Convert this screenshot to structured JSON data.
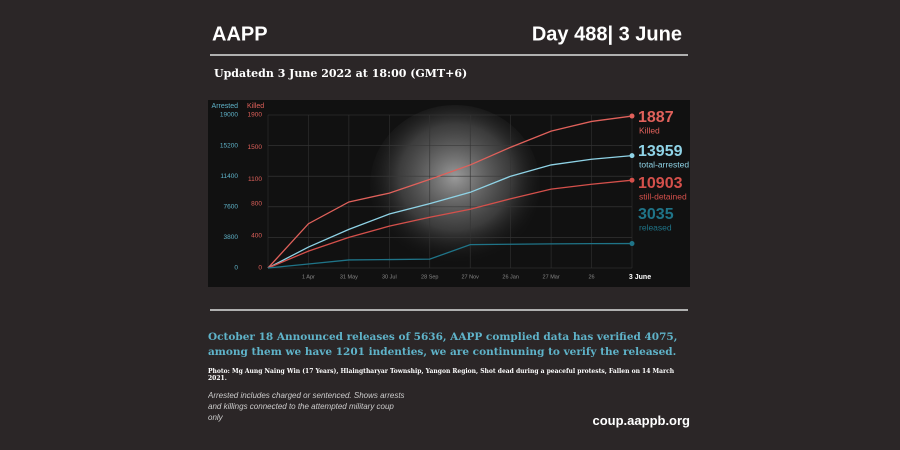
{
  "header": {
    "title": "AAPP",
    "day": "Day 488| 3 June",
    "updated": "Updatedn 3 June 2022 at 18:00 (GMT+6)"
  },
  "chart_data": {
    "type": "line",
    "y_label": "Arrested",
    "y2_label": "Killed",
    "categories": [
      null,
      "1 Apr",
      "31 May",
      "30 Jul",
      "28 Sep",
      "27 Nov",
      "26 Jan",
      "27 Mar",
      "26",
      "3 June"
    ],
    "ylim": [
      0,
      19000
    ],
    "yticks": [
      0,
      3800,
      7600,
      11400,
      15200,
      19000
    ],
    "y2lim": [
      0,
      1900
    ],
    "y2ticks": [
      0,
      400,
      800,
      1100,
      1500,
      1900
    ],
    "grid": true,
    "series": [
      {
        "name": "Killed",
        "color": "#e0615b",
        "axis": "y2",
        "values": [
          0,
          550,
          820,
          930,
          1100,
          1280,
          1500,
          1700,
          1820,
          1887
        ]
      },
      {
        "name": "total-arrested",
        "color": "#8fd3e6",
        "values": [
          0,
          2600,
          4800,
          6700,
          8000,
          9400,
          11400,
          12800,
          13500,
          13959
        ]
      },
      {
        "name": "still-detained",
        "color": "#d4504b",
        "values": [
          0,
          2100,
          3800,
          5200,
          6300,
          7300,
          8600,
          9800,
          10400,
          10903
        ]
      },
      {
        "name": "released",
        "color": "#1f7488",
        "values": [
          0,
          500,
          1000,
          1050,
          1100,
          2900,
          2950,
          3000,
          3030,
          3035
        ]
      }
    ]
  },
  "notes": {
    "releases": "October 18 Announced releases of 5636, AAPP complied data has verified 4075, among them we have 1201 indenties, we are continuning to verify the released.",
    "photo": "Photo: Mg Aung Naing Win (17 Years), Hlaingtharyar Township, Yangon Region, Shot dead during a peaceful protests, Fallen on  14 March 2021.",
    "footnote": "Arrested includes charged or sentenced. Shows arrests and killings connected to the attempted military coup only",
    "url": "coup.aappb.org"
  }
}
